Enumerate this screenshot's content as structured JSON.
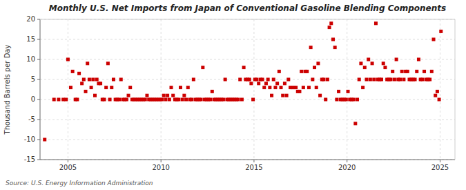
{
  "chart_data": {
    "type": "scatter",
    "title": "Monthly U.S. Net Imports from Japan of Conventional Gasoline Blending Components",
    "ylabel": "Thousand Barrels per Day",
    "source": "Source: U.S. Energy Information Administration",
    "xlim": [
      2003.5,
      2025.8
    ],
    "xticks": [
      2005,
      2010,
      2015,
      2020,
      2025
    ],
    "ylim": [
      -15,
      20
    ],
    "yticks": [
      -15,
      -10,
      -5,
      0,
      5,
      10,
      15,
      20
    ],
    "grid": true,
    "color": "#cc0000",
    "marker": "square",
    "x": [
      2003.75,
      2004.25,
      2004.5,
      2004.75,
      2004.9,
      2005.0,
      2005.15,
      2005.25,
      2005.4,
      2005.5,
      2005.6,
      2005.75,
      2005.85,
      2005.95,
      2006.05,
      2006.15,
      2006.25,
      2006.35,
      2006.45,
      2006.55,
      2006.65,
      2006.75,
      2006.85,
      2006.95,
      2007.05,
      2007.15,
      2007.25,
      2007.35,
      2007.45,
      2007.55,
      2007.65,
      2007.75,
      2007.85,
      2007.95,
      2008.05,
      2008.15,
      2008.25,
      2008.35,
      2008.45,
      2008.55,
      2008.65,
      2008.75,
      2008.85,
      2008.95,
      2009.05,
      2009.15,
      2009.25,
      2009.35,
      2009.45,
      2009.55,
      2009.65,
      2009.75,
      2009.85,
      2009.95,
      2010.05,
      2010.15,
      2010.25,
      2010.35,
      2010.45,
      2010.55,
      2010.65,
      2010.75,
      2010.85,
      2010.95,
      2011.05,
      2011.15,
      2011.25,
      2011.35,
      2011.45,
      2011.55,
      2011.65,
      2011.75,
      2011.85,
      2011.95,
      2012.05,
      2012.15,
      2012.25,
      2012.35,
      2012.45,
      2012.55,
      2012.65,
      2012.75,
      2012.85,
      2012.95,
      2013.05,
      2013.15,
      2013.25,
      2013.35,
      2013.45,
      2013.55,
      2013.65,
      2013.75,
      2013.85,
      2013.95,
      2014.05,
      2014.15,
      2014.25,
      2014.35,
      2014.45,
      2014.55,
      2014.65,
      2014.75,
      2014.85,
      2014.95,
      2015.05,
      2015.15,
      2015.25,
      2015.35,
      2015.45,
      2015.55,
      2015.65,
      2015.75,
      2015.85,
      2015.95,
      2016.05,
      2016.15,
      2016.25,
      2016.35,
      2016.45,
      2016.55,
      2016.65,
      2016.75,
      2016.85,
      2016.95,
      2017.05,
      2017.15,
      2017.25,
      2017.35,
      2017.45,
      2017.55,
      2017.65,
      2017.75,
      2017.85,
      2017.95,
      2018.05,
      2018.15,
      2018.25,
      2018.35,
      2018.45,
      2018.55,
      2018.65,
      2018.75,
      2018.85,
      2018.95,
      2019.05,
      2019.15,
      2019.25,
      2019.35,
      2019.45,
      2019.55,
      2019.65,
      2019.75,
      2019.85,
      2019.95,
      2020.05,
      2020.15,
      2020.25,
      2020.35,
      2020.45,
      2020.55,
      2020.65,
      2020.75,
      2020.85,
      2020.95,
      2021.05,
      2021.15,
      2021.25,
      2021.35,
      2021.45,
      2021.55,
      2021.65,
      2021.75,
      2021.85,
      2021.95,
      2022.05,
      2022.15,
      2022.25,
      2022.35,
      2022.45,
      2022.55,
      2022.65,
      2022.75,
      2022.85,
      2022.95,
      2023.05,
      2023.15,
      2023.25,
      2023.35,
      2023.45,
      2023.55,
      2023.65,
      2023.75,
      2023.85,
      2023.95,
      2024.05,
      2024.15,
      2024.25,
      2024.35,
      2024.45,
      2024.55,
      2024.65,
      2024.75,
      2024.85,
      2024.95,
      2025.05
    ],
    "values": [
      -10,
      0,
      0,
      0,
      0,
      10,
      3,
      7,
      0,
      0,
      6.5,
      4,
      5,
      2,
      9,
      5,
      3,
      5,
      1,
      5,
      4,
      4,
      0,
      0,
      3,
      9,
      0,
      3,
      5,
      0,
      0,
      0,
      5,
      0,
      0,
      0,
      1,
      3,
      0,
      0,
      0,
      0,
      0,
      0,
      0,
      0,
      1,
      0,
      0,
      0,
      0,
      0,
      0,
      0,
      0,
      1,
      0,
      1,
      0,
      3,
      1,
      0,
      0,
      0,
      3,
      0,
      1,
      0,
      3,
      0,
      0,
      5,
      0,
      0,
      0,
      0,
      8,
      0,
      0,
      0,
      0,
      2,
      0,
      0,
      0,
      0,
      0,
      0,
      5,
      0,
      0,
      0,
      0,
      0,
      0,
      0,
      5,
      0,
      8,
      5,
      5,
      5,
      4,
      0,
      5,
      5,
      4,
      5,
      5,
      3,
      4,
      5,
      3,
      1,
      5,
      3,
      4,
      7,
      3,
      1,
      4,
      1,
      5,
      3,
      3,
      3,
      3,
      2,
      2,
      7,
      3,
      7,
      7,
      3,
      13,
      5,
      8,
      3,
      9,
      1,
      5,
      5,
      0,
      5,
      18,
      19,
      15,
      13,
      0,
      2,
      0,
      0,
      0,
      0,
      2,
      0,
      0,
      0,
      -6,
      0,
      5,
      9,
      3,
      8,
      5,
      10,
      5,
      9,
      5,
      19,
      5,
      5,
      5,
      9,
      8,
      5,
      5,
      5,
      7,
      5,
      10,
      5,
      5,
      7,
      5,
      7,
      7,
      5,
      5,
      5,
      5,
      7,
      10,
      5,
      5,
      7,
      5,
      5,
      5,
      7,
      15,
      1,
      2,
      0,
      17
    ]
  }
}
